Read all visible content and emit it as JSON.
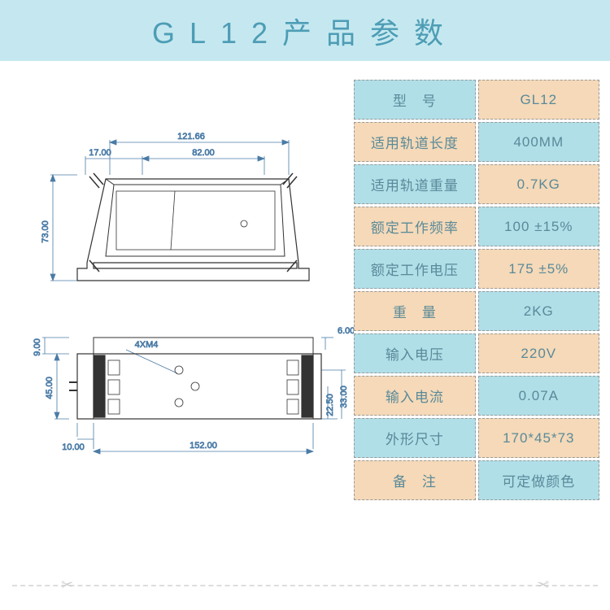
{
  "title": {
    "text": "GL12产品参数",
    "text_color": "#4d9db5",
    "background_color": "#c5e8f0",
    "fontsize": 36,
    "letter_spacing": 18
  },
  "spec_table": {
    "label_bg_odd": "#b0dfe8",
    "label_bg_even": "#f5d9b8",
    "value_bg_odd": "#f5d9b8",
    "value_bg_even": "#b0dfe8",
    "text_color": "#5a8a99",
    "border_color": "#999999",
    "fontsize": 17,
    "rows": [
      {
        "label": "型　号",
        "value": "GL12"
      },
      {
        "label": "适用轨道长度",
        "value": "400MM"
      },
      {
        "label": "适用轨道重量",
        "value": "0.7KG"
      },
      {
        "label": "额定工作频率",
        "value": "100 ±15%"
      },
      {
        "label": "额定工作电压",
        "value": "175 ±5%"
      },
      {
        "label": "重　量",
        "value": "2KG"
      },
      {
        "label": "输入电压",
        "value": "220V"
      },
      {
        "label": "输入电流",
        "value": "0.07A"
      },
      {
        "label": "外形尺寸",
        "value": "170*45*73"
      },
      {
        "label": "备　注",
        "value": "可定做颜色"
      }
    ]
  },
  "drawing": {
    "line_color": "#333333",
    "dim_color": "#4a7ba6",
    "dim_fontsize": 11,
    "line_width": 1,
    "side_view": {
      "dims": {
        "top_outer": "121.66",
        "top_left_gap": "17.00",
        "top_inner": "82.00",
        "left_height": "73.00"
      }
    },
    "top_view": {
      "dims": {
        "left_small": "9.00",
        "left_main": "45.00",
        "bottom_left_gap": "10.00",
        "bottom_main": "152.00",
        "right_top": "6.00",
        "right_mid": "22.50",
        "right_outer": "33.00",
        "holes_label": "4XM4"
      }
    }
  },
  "separator": {
    "line_color": "#dddddd",
    "icon_color": "#cccccc"
  }
}
